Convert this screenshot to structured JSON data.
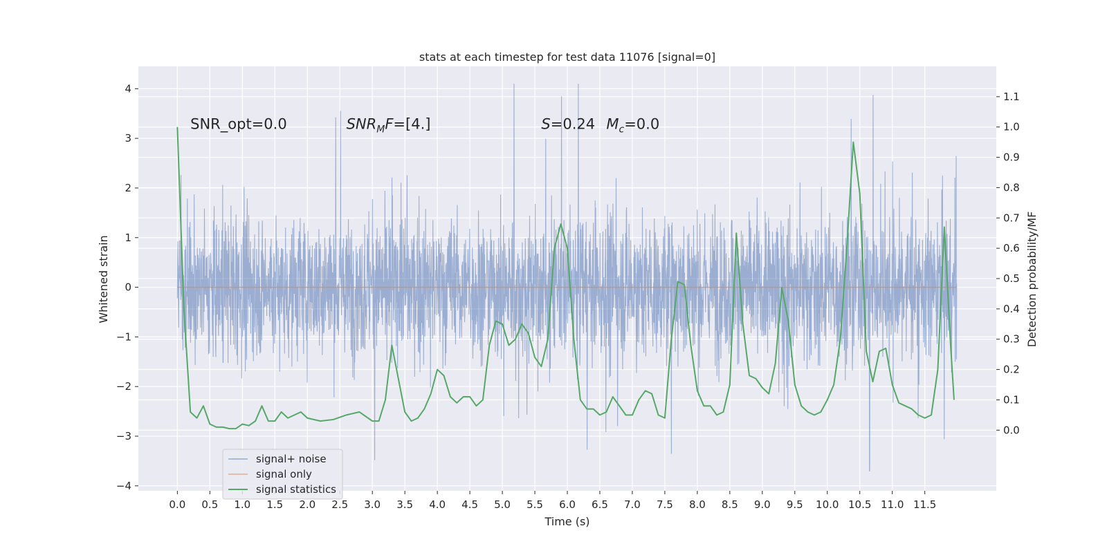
{
  "chart_data": {
    "type": "line",
    "title": "stats at each timestep for test data 11076 [signal=0]",
    "xlabel": "Time (s)",
    "ylabel": "Whitened strain",
    "ylabel_right": "Detection probability/MF",
    "xlim": [
      -0.6,
      12.6
    ],
    "ylim": [
      -4.1,
      4.45
    ],
    "ylim_right": [
      -0.2,
      1.2
    ],
    "x_ticks": [
      "0.0",
      "0.5",
      "1.0",
      "1.5",
      "2.0",
      "2.5",
      "3.0",
      "3.5",
      "4.0",
      "4.5",
      "5.0",
      "5.5",
      "6.0",
      "6.5",
      "7.0",
      "7.5",
      "8.0",
      "8.5",
      "9.0",
      "9.5",
      "10.0",
      "10.5",
      "11.0",
      "11.5"
    ],
    "y_ticks": [
      "−4",
      "−3",
      "−2",
      "−1",
      "0",
      "1",
      "2",
      "3",
      "4"
    ],
    "y_ticks_right": [
      "0.0",
      "0.1",
      "0.2",
      "0.3",
      "0.4",
      "0.5",
      "0.6",
      "0.7",
      "0.8",
      "0.9",
      "1.0",
      "1.1"
    ],
    "grid": true,
    "legend": "lower-left",
    "annotations": [
      {
        "text": "SNR_opt=0.0",
        "x": 0.2,
        "y": 3.3
      },
      {
        "text": "SNR",
        "sub": "M",
        "tail": "F=[4.]",
        "x": 2.6,
        "y": 3.3
      },
      {
        "text": "S",
        "tail": "=0.24",
        "x": 5.6,
        "y": 3.3
      },
      {
        "text": "M",
        "sub": "c",
        "tail": "=0.0",
        "x": 6.6,
        "y": 3.3
      }
    ],
    "series": [
      {
        "name": "signal+ noise",
        "color": "#4c72b0",
        "x_range": [
          0.0,
          11.99
        ],
        "envelope": "noise band roughly ±1.4 with spikes to ~±3",
        "max_peak": 4.1,
        "min_peak": -3.7
      },
      {
        "name": "signal only",
        "color": "#dd8452",
        "x": [
          0.0,
          11.99
        ],
        "y": [
          0.0,
          0.0
        ]
      },
      {
        "name": "signal statistics",
        "color": "#55a868",
        "axis": "right",
        "x": [
          0.0,
          0.1,
          0.2,
          0.3,
          0.4,
          0.5,
          0.6,
          0.7,
          0.8,
          0.9,
          1.0,
          1.1,
          1.2,
          1.3,
          1.4,
          1.5,
          1.6,
          1.7,
          1.8,
          1.9,
          2.0,
          2.2,
          2.4,
          2.6,
          2.8,
          3.0,
          3.1,
          3.2,
          3.3,
          3.4,
          3.5,
          3.6,
          3.7,
          3.8,
          3.9,
          4.0,
          4.1,
          4.2,
          4.3,
          4.4,
          4.5,
          4.6,
          4.7,
          4.8,
          4.9,
          5.0,
          5.1,
          5.2,
          5.3,
          5.4,
          5.5,
          5.6,
          5.7,
          5.8,
          5.9,
          6.0,
          6.1,
          6.2,
          6.3,
          6.4,
          6.5,
          6.6,
          6.7,
          6.8,
          6.9,
          7.0,
          7.1,
          7.2,
          7.3,
          7.4,
          7.5,
          7.6,
          7.7,
          7.8,
          7.9,
          8.0,
          8.1,
          8.2,
          8.3,
          8.4,
          8.5,
          8.6,
          8.7,
          8.8,
          8.9,
          9.0,
          9.1,
          9.2,
          9.3,
          9.4,
          9.5,
          9.6,
          9.7,
          9.8,
          9.9,
          10.0,
          10.1,
          10.2,
          10.3,
          10.4,
          10.5,
          10.6,
          10.7,
          10.8,
          10.9,
          11.0,
          11.1,
          11.2,
          11.3,
          11.4,
          11.5,
          11.6,
          11.7,
          11.8,
          11.9,
          11.95
        ],
        "y": [
          1.0,
          0.4,
          0.06,
          0.04,
          0.08,
          0.02,
          0.01,
          0.01,
          0.005,
          0.005,
          0.02,
          0.015,
          0.03,
          0.08,
          0.03,
          0.03,
          0.06,
          0.04,
          0.05,
          0.06,
          0.04,
          0.03,
          0.035,
          0.05,
          0.06,
          0.03,
          0.03,
          0.1,
          0.28,
          0.17,
          0.06,
          0.03,
          0.04,
          0.07,
          0.12,
          0.2,
          0.18,
          0.11,
          0.09,
          0.11,
          0.11,
          0.08,
          0.1,
          0.28,
          0.36,
          0.35,
          0.28,
          0.3,
          0.35,
          0.32,
          0.24,
          0.21,
          0.3,
          0.6,
          0.68,
          0.6,
          0.3,
          0.1,
          0.07,
          0.07,
          0.05,
          0.06,
          0.11,
          0.08,
          0.05,
          0.05,
          0.1,
          0.13,
          0.12,
          0.05,
          0.04,
          0.3,
          0.49,
          0.48,
          0.28,
          0.13,
          0.08,
          0.08,
          0.05,
          0.06,
          0.15,
          0.65,
          0.35,
          0.18,
          0.17,
          0.14,
          0.12,
          0.22,
          0.47,
          0.36,
          0.15,
          0.08,
          0.06,
          0.05,
          0.06,
          0.1,
          0.15,
          0.3,
          0.6,
          0.95,
          0.78,
          0.26,
          0.16,
          0.26,
          0.27,
          0.15,
          0.09,
          0.08,
          0.07,
          0.05,
          0.04,
          0.05,
          0.2,
          0.67,
          0.27,
          0.1
        ]
      }
    ]
  }
}
